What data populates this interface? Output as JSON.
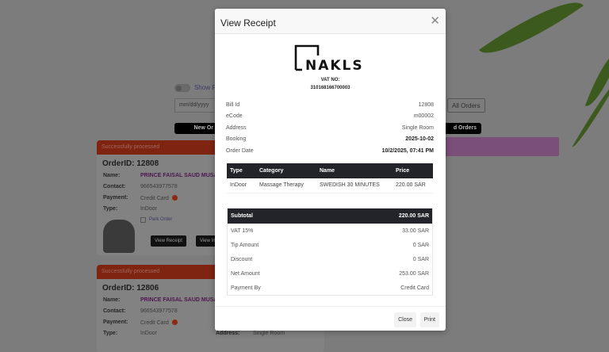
{
  "background": {
    "show_toggle_label": "Show P",
    "date_placeholder": "mm/dd/yyyy",
    "new_orders_button": "New Or",
    "all_orders_button": "All Orders",
    "completed_orders_button": "d Orders",
    "highlight_color": "#7a4f78",
    "cards": [
      {
        "status": "Successfully processed",
        "order_id": "OrderID: 12808",
        "name_label": "Name:",
        "name": "PRINCE FAISAL SAUD MUSA",
        "contact_label": "Contact:",
        "contact": "966543977578",
        "payment_label": "Payment:",
        "payment": "Credit Card",
        "type_label": "Type:",
        "type": "InDoor",
        "park_label": "Park Order",
        "view_receipt": "View Receipt",
        "view_invoice": "View In"
      },
      {
        "status": "Successfully processed",
        "order_id": "OrderID: 12806",
        "name_label": "Name:",
        "name": "PRINCE FAISAL SAUD MUSA",
        "contact_label": "Contact:",
        "contact": "966543977578",
        "payment_label": "Payment:",
        "payment": "Credit Card",
        "type_label": "Type:",
        "type": "InDoor",
        "address_label": "Address:",
        "address": "Single Room"
      }
    ]
  },
  "modal": {
    "title": "View Receipt",
    "close_icon": "close-icon",
    "logo_text": "NAKLS",
    "vat_label": "VAT NO:",
    "vat_number": "310168166700003",
    "info": [
      {
        "label": "Bill Id",
        "value": "12808"
      },
      {
        "label": "eCode",
        "value": "m00002"
      },
      {
        "label": "Address",
        "value": "Single Room"
      },
      {
        "label": "Booking",
        "value": "2025-10-02"
      },
      {
        "label": "Order Date",
        "value": "10/2/2025, 07:41 PM"
      }
    ],
    "items_headers": [
      "Type",
      "Category",
      "Name",
      "Price"
    ],
    "items": [
      [
        "InDoor",
        "Massage Therapy",
        "SWEDISH 30 MINUTES",
        "220.00 SAR"
      ]
    ],
    "totals": [
      {
        "label": "Subtotal",
        "value": "220.00 SAR"
      },
      {
        "label": "VAT 15%",
        "value": "33.00 SAR"
      },
      {
        "label": "Tip Amount",
        "value": "0 SAR"
      },
      {
        "label": "Discount",
        "value": "0 SAR"
      },
      {
        "label": "Net Amount",
        "value": "253.00 SAR"
      },
      {
        "label": "Payment By",
        "value": "Credit Card"
      }
    ],
    "close_button": "Close",
    "print_button": "Print"
  }
}
